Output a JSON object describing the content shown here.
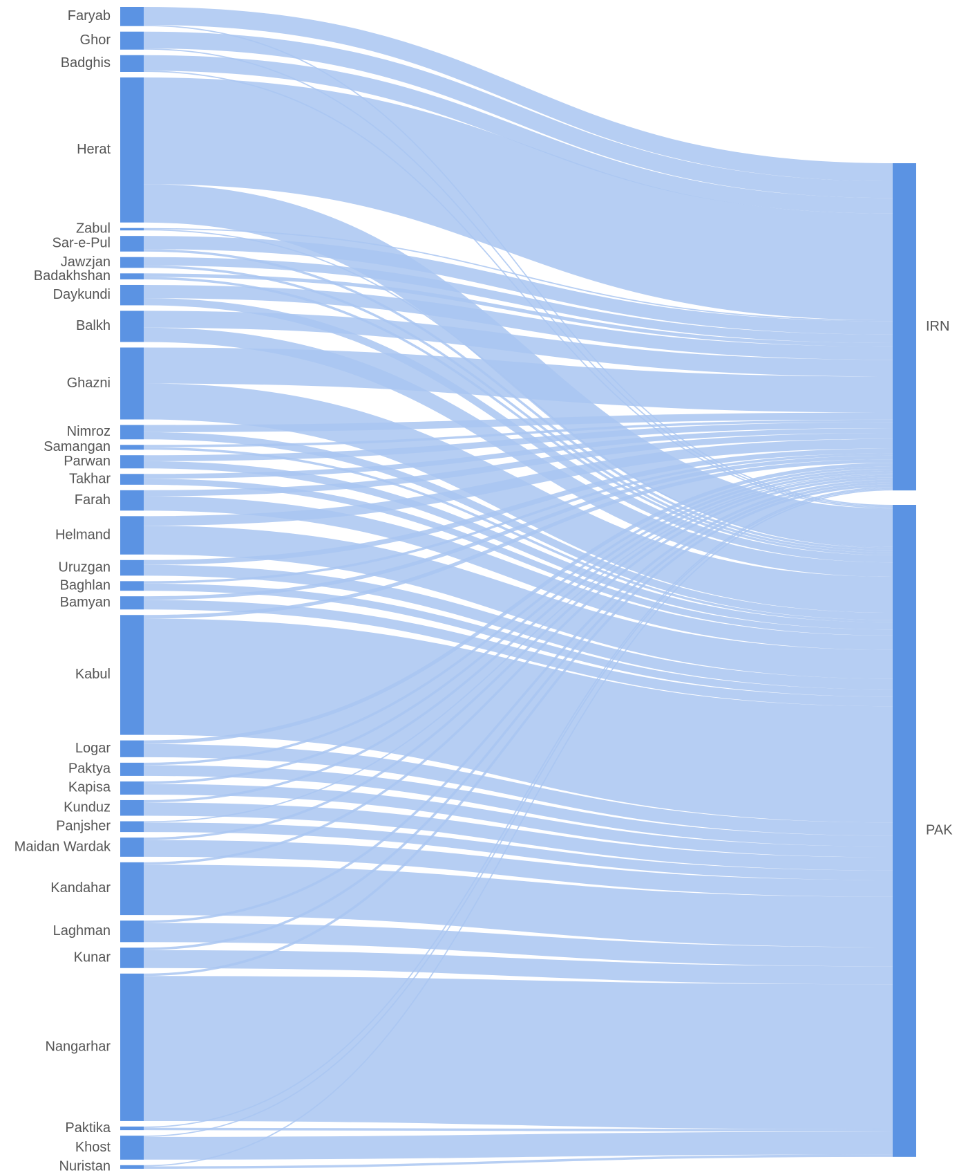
{
  "colors": {
    "node": "#5b93e3",
    "link": "#a9c6f1",
    "label": "#555555"
  },
  "chart_data": {
    "type": "sankey",
    "sources": [
      {
        "name": "Faryab",
        "flows": [
          [
            "IRN",
            15
          ],
          [
            "PAK",
            1
          ]
        ]
      },
      {
        "name": "Ghor",
        "flows": [
          [
            "IRN",
            14
          ],
          [
            "PAK",
            1
          ]
        ]
      },
      {
        "name": "Badghis",
        "flows": [
          [
            "IRN",
            13
          ],
          [
            "PAK",
            1
          ]
        ]
      },
      {
        "name": "Herat",
        "flows": [
          [
            "IRN",
            89
          ],
          [
            "PAK",
            32
          ]
        ]
      },
      {
        "name": "Zabul",
        "flows": [
          [
            "IRN",
            1
          ],
          [
            "PAK",
            1
          ]
        ]
      },
      {
        "name": "Sar-e-Pul",
        "flows": [
          [
            "IRN",
            11
          ],
          [
            "PAK",
            2
          ]
        ]
      },
      {
        "name": "Jawzjan",
        "flows": [
          [
            "IRN",
            7
          ],
          [
            "PAK",
            2
          ]
        ]
      },
      {
        "name": "Badakhshan",
        "flows": [
          [
            "IRN",
            3
          ],
          [
            "PAK",
            2
          ]
        ]
      },
      {
        "name": "Daykundi",
        "flows": [
          [
            "IRN",
            11
          ],
          [
            "PAK",
            6
          ]
        ]
      },
      {
        "name": "Balkh",
        "flows": [
          [
            "IRN",
            14
          ],
          [
            "PAK",
            12
          ]
        ]
      },
      {
        "name": "Ghazni",
        "flows": [
          [
            "IRN",
            30
          ],
          [
            "PAK",
            30
          ]
        ]
      },
      {
        "name": "Nimroz",
        "flows": [
          [
            "IRN",
            6
          ],
          [
            "PAK",
            6
          ]
        ]
      },
      {
        "name": "Samangan",
        "flows": [
          [
            "IRN",
            2
          ],
          [
            "PAK",
            2
          ]
        ]
      },
      {
        "name": "Parwan",
        "flows": [
          [
            "IRN",
            5
          ],
          [
            "PAK",
            6
          ]
        ]
      },
      {
        "name": "Takhar",
        "flows": [
          [
            "IRN",
            4
          ],
          [
            "PAK",
            5
          ]
        ]
      },
      {
        "name": "Farah",
        "flows": [
          [
            "IRN",
            5
          ],
          [
            "PAK",
            12
          ]
        ]
      },
      {
        "name": "Helmand",
        "flows": [
          [
            "IRN",
            8
          ],
          [
            "PAK",
            24
          ]
        ]
      },
      {
        "name": "Uruzgan",
        "flows": [
          [
            "IRN",
            4
          ],
          [
            "PAK",
            9
          ]
        ]
      },
      {
        "name": "Baghlan",
        "flows": [
          [
            "IRN",
            2
          ],
          [
            "PAK",
            6
          ]
        ]
      },
      {
        "name": "Bamyan",
        "flows": [
          [
            "IRN",
            3
          ],
          [
            "PAK",
            8
          ]
        ]
      },
      {
        "name": "Kabul",
        "flows": [
          [
            "IRN",
            3
          ],
          [
            "PAK",
            97
          ]
        ]
      },
      {
        "name": "Logar",
        "flows": [
          [
            "IRN",
            3
          ],
          [
            "PAK",
            11
          ]
        ]
      },
      {
        "name": "Paktya",
        "flows": [
          [
            "IRN",
            2
          ],
          [
            "PAK",
            9
          ]
        ]
      },
      {
        "name": "Kapisa",
        "flows": [
          [
            "IRN",
            2
          ],
          [
            "PAK",
            9
          ]
        ]
      },
      {
        "name": "Kunduz",
        "flows": [
          [
            "IRN",
            2
          ],
          [
            "PAK",
            11
          ]
        ]
      },
      {
        "name": "Panjsher",
        "flows": [
          [
            "IRN",
            1
          ],
          [
            "PAK",
            8
          ]
        ]
      },
      {
        "name": "Maidan Wardak",
        "flows": [
          [
            "IRN",
            2
          ],
          [
            "PAK",
            14
          ]
        ]
      },
      {
        "name": "Kandahar",
        "flows": [
          [
            "IRN",
            2
          ],
          [
            "PAK",
            42
          ]
        ]
      },
      {
        "name": "Laghman",
        "flows": [
          [
            "IRN",
            2
          ],
          [
            "PAK",
            16
          ]
        ]
      },
      {
        "name": "Kunar",
        "flows": [
          [
            "IRN",
            2
          ],
          [
            "PAK",
            15
          ]
        ]
      },
      {
        "name": "Nangarhar",
        "flows": [
          [
            "IRN",
            2
          ],
          [
            "PAK",
            121
          ]
        ]
      },
      {
        "name": "Paktika",
        "flows": [
          [
            "IRN",
            1
          ],
          [
            "PAK",
            2
          ]
        ]
      },
      {
        "name": "Khost",
        "flows": [
          [
            "IRN",
            1
          ],
          [
            "PAK",
            19
          ]
        ]
      },
      {
        "name": "Nuristan",
        "flows": [
          [
            "IRN",
            1
          ],
          [
            "PAK",
            2
          ]
        ]
      }
    ],
    "targets": [
      "IRN",
      "PAK"
    ]
  }
}
